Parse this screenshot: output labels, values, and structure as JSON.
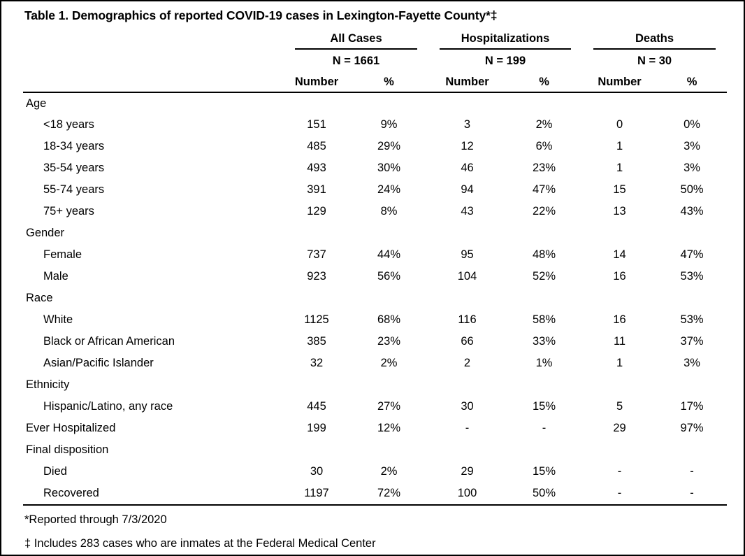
{
  "title": "Table 1. Demographics of reported COVID-19 cases in Lexington-Fayette County*‡",
  "column_groups": [
    {
      "label": "All Cases",
      "n_label": "N = 1661",
      "number_header": "Number",
      "percent_header": "%"
    },
    {
      "label": "Hospitalizations",
      "n_label": "N = 199",
      "number_header": "Number",
      "percent_header": "%"
    },
    {
      "label": "Deaths",
      "n_label": "N = 30",
      "number_header": "Number",
      "percent_header": "%"
    }
  ],
  "rows": [
    {
      "label": "Age",
      "indent": false,
      "values": []
    },
    {
      "label": "<18 years",
      "indent": true,
      "values": [
        "151",
        "9%",
        "3",
        "2%",
        "0",
        "0%"
      ]
    },
    {
      "label": "18-34 years",
      "indent": true,
      "values": [
        "485",
        "29%",
        "12",
        "6%",
        "1",
        "3%"
      ]
    },
    {
      "label": "35-54 years",
      "indent": true,
      "values": [
        "493",
        "30%",
        "46",
        "23%",
        "1",
        "3%"
      ]
    },
    {
      "label": "55-74 years",
      "indent": true,
      "values": [
        "391",
        "24%",
        "94",
        "47%",
        "15",
        "50%"
      ]
    },
    {
      "label": "75+ years",
      "indent": true,
      "values": [
        "129",
        "8%",
        "43",
        "22%",
        "13",
        "43%"
      ]
    },
    {
      "label": "Gender",
      "indent": false,
      "values": []
    },
    {
      "label": "Female",
      "indent": true,
      "values": [
        "737",
        "44%",
        "95",
        "48%",
        "14",
        "47%"
      ]
    },
    {
      "label": "Male",
      "indent": true,
      "values": [
        "923",
        "56%",
        "104",
        "52%",
        "16",
        "53%"
      ]
    },
    {
      "label": "Race",
      "indent": false,
      "values": []
    },
    {
      "label": "White",
      "indent": true,
      "values": [
        "1125",
        "68%",
        "116",
        "58%",
        "16",
        "53%"
      ]
    },
    {
      "label": "Black or African American",
      "indent": true,
      "values": [
        "385",
        "23%",
        "66",
        "33%",
        "11",
        "37%"
      ]
    },
    {
      "label": "Asian/Pacific Islander",
      "indent": true,
      "values": [
        "32",
        "2%",
        "2",
        "1%",
        "1",
        "3%"
      ]
    },
    {
      "label": "Ethnicity",
      "indent": false,
      "values": []
    },
    {
      "label": "Hispanic/Latino, any race",
      "indent": true,
      "values": [
        "445",
        "27%",
        "30",
        "15%",
        "5",
        "17%"
      ]
    },
    {
      "label": "Ever Hospitalized",
      "indent": false,
      "values": [
        "199",
        "12%",
        "-",
        "-",
        "29",
        "97%"
      ]
    },
    {
      "label": "Final disposition",
      "indent": false,
      "values": []
    },
    {
      "label": "Died",
      "indent": true,
      "values": [
        "30",
        "2%",
        "29",
        "15%",
        "-",
        "-"
      ]
    },
    {
      "label": "Recovered",
      "indent": true,
      "values": [
        "1197",
        "72%",
        "100",
        "50%",
        "-",
        "-"
      ]
    }
  ],
  "footnotes": [
    "*Reported through 7/3/2020",
    "‡ Includes 283 cases who are inmates at the Federal Medical Center"
  ],
  "colors": {
    "text": "#000000",
    "background": "#ffffff",
    "border": "#000000"
  }
}
